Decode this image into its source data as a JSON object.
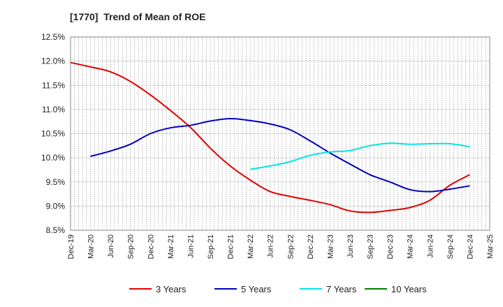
{
  "chart_data": {
    "type": "line",
    "title": "[1770]  Trend of Mean of ROE",
    "xlabel": "",
    "ylabel": "",
    "ylim": [
      8.5,
      12.5
    ],
    "y_ticks": [
      "8.5%",
      "9.0%",
      "9.5%",
      "10.0%",
      "10.5%",
      "11.0%",
      "11.5%",
      "12.0%",
      "12.5%"
    ],
    "x_ticks": [
      "Dec-19",
      "Mar-20",
      "Jun-20",
      "Sep-20",
      "Dec-20",
      "Mar-21",
      "Jun-21",
      "Sep-21",
      "Dec-21",
      "Mar-22",
      "Jun-22",
      "Sep-22",
      "Dec-22",
      "Mar-23",
      "Jun-23",
      "Sep-23",
      "Dec-23",
      "Mar-24",
      "Jun-24",
      "Sep-24",
      "Dec-24",
      "Mar-25"
    ],
    "grid": true,
    "legend_position": "bottom",
    "series": [
      {
        "name": "3 Years",
        "color": "#e00000",
        "points": [
          [
            "Dec-19",
            11.97
          ],
          [
            "Mar-20",
            11.88
          ],
          [
            "Jun-20",
            11.78
          ],
          [
            "Sep-20",
            11.58
          ],
          [
            "Dec-20",
            11.3
          ],
          [
            "Mar-21",
            10.98
          ],
          [
            "Jun-21",
            10.63
          ],
          [
            "Sep-21",
            10.2
          ],
          [
            "Dec-21",
            9.83
          ],
          [
            "Mar-22",
            9.54
          ],
          [
            "Jun-22",
            9.3
          ],
          [
            "Sep-22",
            9.2
          ],
          [
            "Dec-22",
            9.12
          ],
          [
            "Mar-23",
            9.03
          ],
          [
            "Jun-23",
            8.9
          ],
          [
            "Sep-23",
            8.87
          ],
          [
            "Dec-23",
            8.91
          ],
          [
            "Mar-24",
            8.97
          ],
          [
            "Jun-24",
            9.12
          ],
          [
            "Sep-24",
            9.43
          ],
          [
            "Dec-24",
            9.65
          ]
        ]
      },
      {
        "name": "5 Years",
        "color": "#0000c0",
        "points": [
          [
            "Mar-20",
            10.03
          ],
          [
            "Jun-20",
            10.14
          ],
          [
            "Sep-20",
            10.28
          ],
          [
            "Dec-20",
            10.5
          ],
          [
            "Mar-21",
            10.62
          ],
          [
            "Jun-21",
            10.67
          ],
          [
            "Sep-21",
            10.76
          ],
          [
            "Dec-21",
            10.81
          ],
          [
            "Mar-22",
            10.77
          ],
          [
            "Jun-22",
            10.7
          ],
          [
            "Sep-22",
            10.58
          ],
          [
            "Dec-22",
            10.35
          ],
          [
            "Mar-23",
            10.1
          ],
          [
            "Jun-23",
            9.87
          ],
          [
            "Sep-23",
            9.65
          ],
          [
            "Dec-23",
            9.5
          ],
          [
            "Mar-24",
            9.34
          ],
          [
            "Jun-24",
            9.3
          ],
          [
            "Sep-24",
            9.35
          ],
          [
            "Dec-24",
            9.42
          ]
        ]
      },
      {
        "name": "7 Years",
        "color": "#00e5e5",
        "points": [
          [
            "Mar-22",
            9.76
          ],
          [
            "Jun-22",
            9.83
          ],
          [
            "Sep-22",
            9.92
          ],
          [
            "Dec-22",
            10.05
          ],
          [
            "Mar-23",
            10.12
          ],
          [
            "Jun-23",
            10.15
          ],
          [
            "Sep-23",
            10.25
          ],
          [
            "Dec-23",
            10.3
          ],
          [
            "Mar-24",
            10.28
          ],
          [
            "Jun-24",
            10.29
          ],
          [
            "Sep-24",
            10.29
          ],
          [
            "Dec-24",
            10.23
          ]
        ]
      },
      {
        "name": "10 Years",
        "color": "#008000",
        "points": []
      }
    ]
  }
}
